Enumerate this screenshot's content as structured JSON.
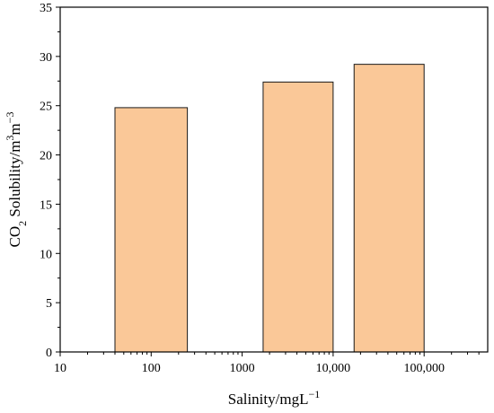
{
  "chart_data": {
    "type": "bar",
    "x_scale": "log",
    "xlim": [
      10,
      500000
    ],
    "ylim": [
      0,
      35
    ],
    "x_tick_values": [
      10,
      100,
      1000,
      10000,
      100000
    ],
    "x_tick_labels": [
      "10",
      "100",
      "1000",
      "10,000",
      "100,000"
    ],
    "y_tick_values": [
      0,
      5,
      10,
      15,
      20,
      25,
      30,
      35
    ],
    "y_tick_labels": [
      "0",
      "5",
      "10",
      "15",
      "20",
      "25",
      "30",
      "35"
    ],
    "bars": [
      {
        "x_range": [
          40,
          250
        ],
        "value": 24.8
      },
      {
        "x_range": [
          1700,
          10000
        ],
        "value": 27.4
      },
      {
        "x_range": [
          17000,
          100000
        ],
        "value": 29.2
      }
    ],
    "xlabel": {
      "main": "Salinity/mgL",
      "sup": "−1"
    },
    "ylabel": {
      "parts": [
        {
          "t": "CO",
          "s": "normal"
        },
        {
          "t": "2",
          "s": "sub"
        },
        {
          "t": " Solubility/m",
          "s": "normal"
        },
        {
          "t": "3",
          "s": "sup"
        },
        {
          "t": "m",
          "s": "normal"
        },
        {
          "t": "−3",
          "s": "sup"
        }
      ]
    },
    "grid": false,
    "legend": "none",
    "colors": {
      "bar_fill": "#fac898",
      "bar_stroke": "#1a1a1a",
      "axis": "#000000"
    }
  }
}
